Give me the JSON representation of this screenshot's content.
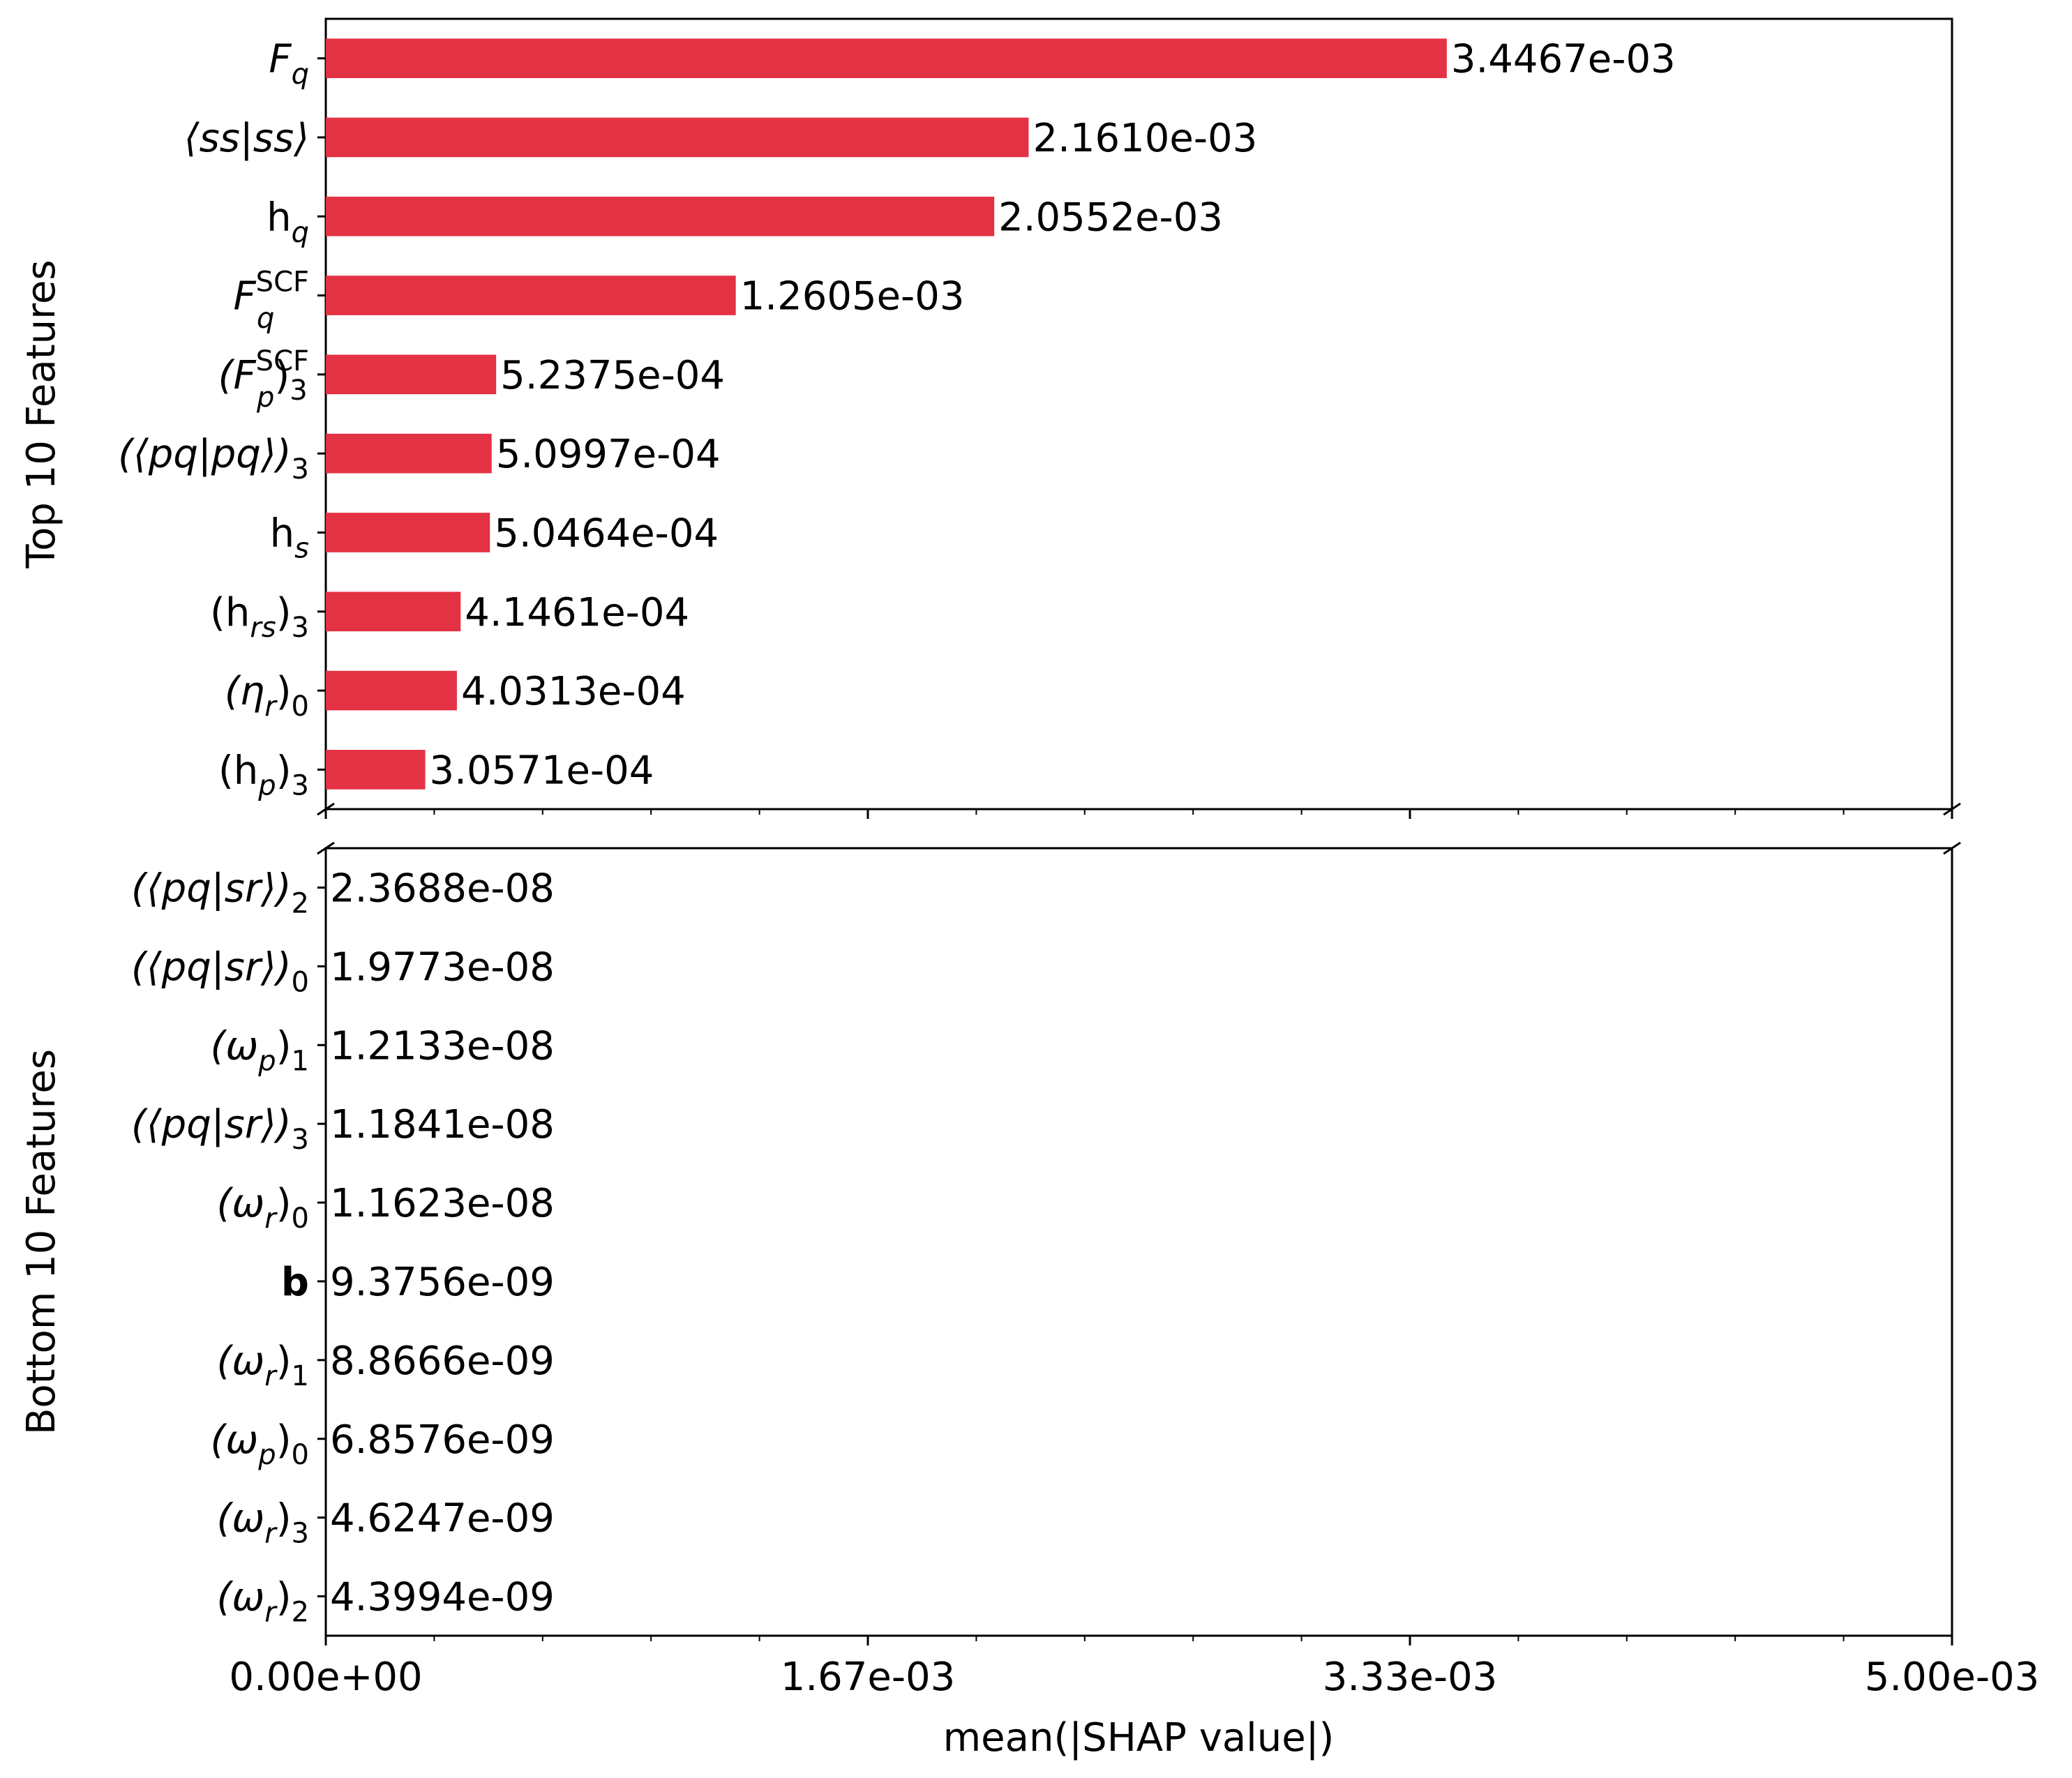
{
  "chart_data": {
    "type": "bar",
    "orientation": "horizontal",
    "xlabel": "mean(|SHAP value|)",
    "xlim": [
      0,
      0.005
    ],
    "xticks": [
      "0.00e+00",
      "1.67e-03",
      "3.33e-03",
      "5.00e-03"
    ],
    "bar_color": "#e33243",
    "panels": [
      {
        "ylabel": "Top 10 Features",
        "categories": [
          {
            "base": "F",
            "sub": "q",
            "sup": "",
            "italic": true,
            "close": ""
          },
          {
            "base": "⟨ss|ss⟩",
            "sub": "",
            "sup": "",
            "italic": true,
            "close": ""
          },
          {
            "base": "h",
            "sub": "q",
            "sup": "",
            "italic": false,
            "close": ""
          },
          {
            "base": "F",
            "sub": "q",
            "sup": "SCF",
            "italic": true,
            "close": ""
          },
          {
            "base": "(F",
            "sub": "p",
            "sup": "SCF",
            "italic": true,
            "close": ")3"
          },
          {
            "base": "(⟨pq|pq⟩)",
            "sub": "3",
            "sup": "",
            "italic": true,
            "close": ""
          },
          {
            "base": "h",
            "sub": "s",
            "sup": "",
            "italic": false,
            "close": ""
          },
          {
            "base": "(h",
            "sub": "rs",
            "sup": "",
            "italic": false,
            "close": ")3"
          },
          {
            "base": "(η",
            "sub": "r",
            "sup": "",
            "italic": true,
            "close": ")0"
          },
          {
            "base": "(h",
            "sub": "p",
            "sup": "",
            "italic": false,
            "close": ")3"
          }
        ],
        "values": [
          0.0034467,
          0.002161,
          0.0020552,
          0.0012605,
          0.00052375,
          0.00050997,
          0.00050464,
          0.00041461,
          0.00040313,
          0.00030571
        ],
        "value_labels": [
          "3.4467e-03",
          "2.1610e-03",
          "2.0552e-03",
          "1.2605e-03",
          "5.2375e-04",
          "5.0997e-04",
          "5.0464e-04",
          "4.1461e-04",
          "4.0313e-04",
          "3.0571e-04"
        ]
      },
      {
        "ylabel": "Bottom 10 Features",
        "categories": [
          {
            "base": "(⟨pq|sr⟩)",
            "sub": "2",
            "sup": "",
            "italic": true,
            "close": ""
          },
          {
            "base": "(⟨pq|sr⟩)",
            "sub": "0",
            "sup": "",
            "italic": true,
            "close": ""
          },
          {
            "base": "(ω",
            "sub": "p",
            "sup": "",
            "italic": true,
            "close": ")1"
          },
          {
            "base": "(⟨pq|sr⟩)",
            "sub": "3",
            "sup": "",
            "italic": true,
            "close": ""
          },
          {
            "base": "(ω",
            "sub": "r",
            "sup": "",
            "italic": true,
            "close": ")0"
          },
          {
            "base": "b",
            "sub": "",
            "sup": "",
            "italic": false,
            "bold": true,
            "close": ""
          },
          {
            "base": "(ω",
            "sub": "r",
            "sup": "",
            "italic": true,
            "close": ")1"
          },
          {
            "base": "(ω",
            "sub": "p",
            "sup": "",
            "italic": true,
            "close": ")0"
          },
          {
            "base": "(ω",
            "sub": "r",
            "sup": "",
            "italic": true,
            "close": ")3"
          },
          {
            "base": "(ω",
            "sub": "r",
            "sup": "",
            "italic": true,
            "close": ")2"
          }
        ],
        "values": [
          2.3688e-08,
          1.9773e-08,
          1.2133e-08,
          1.1841e-08,
          1.1623e-08,
          9.3756e-09,
          8.8666e-09,
          6.8576e-09,
          4.6247e-09,
          4.3994e-09
        ],
        "value_labels": [
          "2.3688e-08",
          "1.9773e-08",
          "1.2133e-08",
          "1.1841e-08",
          "1.1623e-08",
          "9.3756e-09",
          "8.8666e-09",
          "6.8576e-09",
          "4.6247e-09",
          "4.3994e-09"
        ]
      }
    ]
  }
}
